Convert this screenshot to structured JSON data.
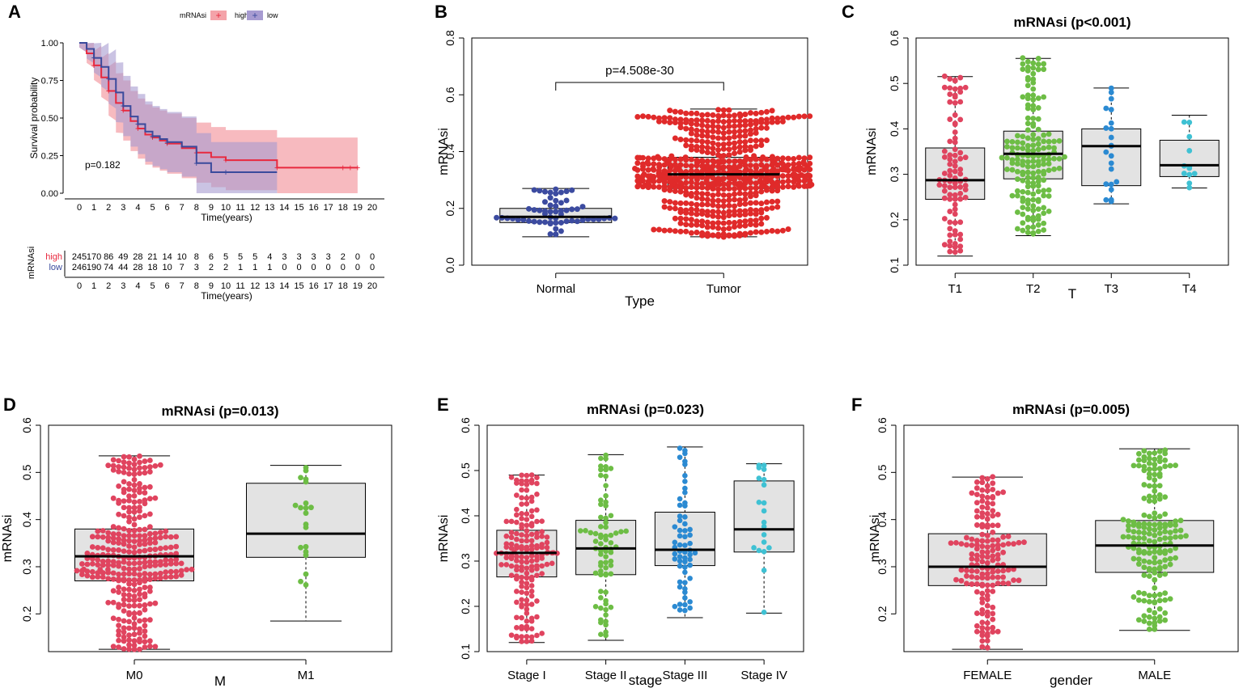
{
  "figure": {
    "colors": {
      "high": "#e8293f",
      "low": "#3a4a9c",
      "highBand": "#f4a3a9",
      "lowBand": "#a79bd1",
      "boxFill": "#e3e3e3",
      "red": "#e02a2a",
      "blueDark": "#3c4ba0",
      "pink": "#e0445f",
      "green": "#6dbd45",
      "blue": "#2b8ad2",
      "cyan": "#3fc1d3"
    }
  },
  "chart_data": [
    {
      "panel": "A",
      "type": "line",
      "legend_title": "mRNAsi",
      "legend": [
        "high",
        "low"
      ],
      "ylabel": "Survival probability",
      "xlabel": "Time(years)",
      "xlim": [
        0,
        20
      ],
      "ylim": [
        0,
        1
      ],
      "yticks": [
        "0.00",
        "0.25",
        "0.50",
        "0.75",
        "1.00"
      ],
      "xticks": [
        "0",
        "1",
        "2",
        "3",
        "4",
        "5",
        "6",
        "7",
        "8",
        "9",
        "10",
        "11",
        "12",
        "13",
        "14",
        "15",
        "16",
        "17",
        "18",
        "19",
        "20"
      ],
      "pvalue": "p=0.182",
      "series": [
        {
          "name": "high",
          "x": [
            0,
            0.5,
            1,
            1.5,
            2,
            2.5,
            3,
            3.5,
            4,
            4.5,
            5,
            5.5,
            6,
            7,
            8,
            9,
            10,
            12,
            13.5,
            19
          ],
          "y": [
            1,
            0.93,
            0.85,
            0.77,
            0.68,
            0.6,
            0.55,
            0.48,
            0.43,
            0.39,
            0.37,
            0.35,
            0.33,
            0.3,
            0.27,
            0.24,
            0.22,
            0.22,
            0.17,
            0.17
          ]
        },
        {
          "name": "low",
          "x": [
            0,
            0.5,
            1,
            1.5,
            2,
            2.5,
            3,
            3.5,
            4,
            4.5,
            5,
            5.5,
            6,
            7,
            8,
            9,
            10,
            13.5
          ],
          "y": [
            1,
            0.96,
            0.9,
            0.84,
            0.76,
            0.67,
            0.58,
            0.51,
            0.46,
            0.41,
            0.38,
            0.36,
            0.34,
            0.31,
            0.2,
            0.14,
            0.14,
            0.14
          ]
        }
      ],
      "risk_table": {
        "ylabel": "mRNAsi",
        "xlabel": "Time(years)",
        "rows": [
          {
            "name": "high",
            "counts": [
              "245",
              "170",
              "86",
              "49",
              "28",
              "21",
              "14",
              "10",
              "8",
              "6",
              "5",
              "5",
              "5",
              "4",
              "3",
              "3",
              "3",
              "3",
              "2",
              "0",
              "0"
            ]
          },
          {
            "name": "low",
            "counts": [
              "246",
              "190",
              "74",
              "44",
              "28",
              "18",
              "10",
              "7",
              "3",
              "2",
              "2",
              "1",
              "1",
              "1",
              "0",
              "0",
              "0",
              "0",
              "0",
              "0",
              "0"
            ]
          }
        ]
      }
    },
    {
      "panel": "B",
      "type": "box",
      "title": "",
      "xlabel": "Type",
      "ylabel": "mRNAsi",
      "ylim": [
        0,
        0.8
      ],
      "yticks": [
        "0.0",
        "0.2",
        "0.4",
        "0.6",
        "0.8"
      ],
      "categories": [
        "Normal",
        "Tumor"
      ],
      "pvalue": "p=4.508e-30",
      "boxes": [
        {
          "name": "Normal",
          "min": 0.1,
          "q1": 0.15,
          "median": 0.17,
          "q3": 0.2,
          "max": 0.27,
          "n": 60,
          "color": "blueDark"
        },
        {
          "name": "Tumor",
          "min": 0.1,
          "q1": 0.27,
          "median": 0.32,
          "q3": 0.38,
          "max": 0.55,
          "n": 650,
          "color": "red"
        }
      ]
    },
    {
      "panel": "C",
      "type": "box",
      "title": "mRNAsi (p<0.001)",
      "xlabel": "T",
      "ylabel": "mRNAsi",
      "ylim": [
        0.1,
        0.6
      ],
      "yticks": [
        "0.1",
        "0.2",
        "0.3",
        "0.4",
        "0.5",
        "0.6"
      ],
      "categories": [
        "T1",
        "T2",
        "T3",
        "T4"
      ],
      "boxes": [
        {
          "name": "T1",
          "min": 0.12,
          "q1": 0.245,
          "median": 0.287,
          "q3": 0.358,
          "max": 0.515,
          "n": 90,
          "color": "pink"
        },
        {
          "name": "T2",
          "min": 0.165,
          "q1": 0.29,
          "median": 0.345,
          "q3": 0.395,
          "max": 0.555,
          "n": 170,
          "color": "green"
        },
        {
          "name": "T3",
          "min": 0.235,
          "q1": 0.275,
          "median": 0.362,
          "q3": 0.4,
          "max": 0.49,
          "n": 22,
          "color": "blue"
        },
        {
          "name": "T4",
          "min": 0.27,
          "q1": 0.295,
          "median": 0.32,
          "q3": 0.375,
          "max": 0.43,
          "n": 12,
          "color": "cyan"
        }
      ]
    },
    {
      "panel": "D",
      "type": "box",
      "title": "mRNAsi (p=0.013)",
      "xlabel": "M",
      "ylabel": "mRNAsi",
      "ylim": [
        0.12,
        0.6
      ],
      "yticks": [
        "0.2",
        "0.3",
        "0.4",
        "0.5",
        "0.6"
      ],
      "categories": [
        "M0",
        "M1"
      ],
      "boxes": [
        {
          "name": "M0",
          "min": 0.125,
          "q1": 0.27,
          "median": 0.322,
          "q3": 0.38,
          "max": 0.535,
          "n": 330,
          "color": "pink"
        },
        {
          "name": "M1",
          "min": 0.185,
          "q1": 0.32,
          "median": 0.37,
          "q3": 0.477,
          "max": 0.515,
          "n": 20,
          "color": "green"
        }
      ]
    },
    {
      "panel": "E",
      "type": "box",
      "title": "mRNAsi (p=0.023)",
      "xlabel": "stage",
      "ylabel": "mRNAsi",
      "ylim": [
        0.1,
        0.6
      ],
      "yticks": [
        "0.1",
        "0.2",
        "0.3",
        "0.4",
        "0.5",
        "0.6"
      ],
      "categories": [
        "Stage I",
        "Stage II",
        "Stage III",
        "Stage IV"
      ],
      "boxes": [
        {
          "name": "Stage I",
          "min": 0.12,
          "q1": 0.265,
          "median": 0.318,
          "q3": 0.368,
          "max": 0.49,
          "n": 170,
          "color": "pink"
        },
        {
          "name": "Stage II",
          "min": 0.125,
          "q1": 0.27,
          "median": 0.328,
          "q3": 0.39,
          "max": 0.535,
          "n": 75,
          "color": "green"
        },
        {
          "name": "Stage III",
          "min": 0.175,
          "q1": 0.29,
          "median": 0.325,
          "q3": 0.408,
          "max": 0.552,
          "n": 60,
          "color": "blue"
        },
        {
          "name": "Stage IV",
          "min": 0.185,
          "q1": 0.32,
          "median": 0.37,
          "q3": 0.477,
          "max": 0.515,
          "n": 20,
          "color": "cyan"
        }
      ]
    },
    {
      "panel": "F",
      "type": "box",
      "title": "mRNAsi (p=0.005)",
      "xlabel": "gender",
      "ylabel": "mRNAsi",
      "ylim": [
        0.12,
        0.6
      ],
      "yticks": [
        "0.2",
        "0.3",
        "0.4",
        "0.5",
        "0.6"
      ],
      "categories": [
        "FEMALE",
        "MALE"
      ],
      "boxes": [
        {
          "name": "FEMALE",
          "min": 0.125,
          "q1": 0.26,
          "median": 0.3,
          "q3": 0.37,
          "max": 0.49,
          "n": 160,
          "color": "pink"
        },
        {
          "name": "MALE",
          "min": 0.165,
          "q1": 0.288,
          "median": 0.345,
          "q3": 0.398,
          "max": 0.55,
          "n": 180,
          "color": "green"
        }
      ]
    }
  ]
}
